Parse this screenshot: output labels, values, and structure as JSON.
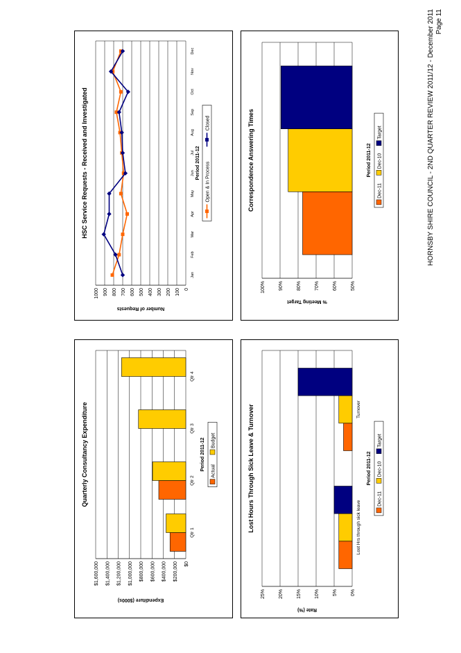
{
  "footer": {
    "line1": "HORNSBY SHIRE COUNCIL - 2ND QUARTER REVIEW 2011/12 - December 2011",
    "line2": "Page 11"
  },
  "chart_data": [
    {
      "type": "bar",
      "title": "Quarterly Consultancy Expenditure",
      "xlabel": "Period 2011-12",
      "ylabel": "Expenditure ($000s)",
      "ylim": [
        0,
        1600000
      ],
      "yticks": [
        0,
        200000,
        400000,
        600000,
        800000,
        1000000,
        1200000,
        1400000,
        1600000
      ],
      "ytick_labels": [
        "$0",
        "$200,000",
        "$400,000",
        "$600,000",
        "$800,000",
        "$1,000,000",
        "$1,200,000",
        "$1,400,000",
        "$1,600,000"
      ],
      "categories": [
        "Qtr 1",
        "Qtr 2",
        "Qtr 3",
        "Qtr 4"
      ],
      "series": [
        {
          "name": "Actual",
          "color": "#ff6600",
          "values": [
            280000,
            480000,
            null,
            null
          ]
        },
        {
          "name": "Budget",
          "color": "#ffcc00",
          "values": [
            350000,
            590000,
            840000,
            1140000
          ]
        }
      ],
      "legend": "bottom",
      "grid": true
    },
    {
      "type": "line",
      "title": "HSC Service Requests - Received and Investigated",
      "xlabel": "Period 2011-12",
      "ylabel": "Number of Requests",
      "ylim": [
        0,
        1000
      ],
      "yticks": [
        0,
        100,
        200,
        300,
        400,
        500,
        600,
        700,
        800,
        900,
        1000
      ],
      "ytick_labels": [
        "0",
        "100",
        "200",
        "300",
        "400",
        "500",
        "600",
        "700",
        "800",
        "900",
        "1000"
      ],
      "categories": [
        "Jan",
        "Feb",
        "Mar",
        "Apr",
        "May",
        "Jun",
        "Jul",
        "Aug",
        "Sep",
        "Oct",
        "Nov",
        "Dec"
      ],
      "series": [
        {
          "name": "Open & In Process",
          "color": "#ff6600",
          "marker": "square",
          "values": [
            815,
            740,
            700,
            650,
            720,
            690,
            710,
            730,
            770,
            720,
            810,
            720
          ]
        },
        {
          "name": "Closed",
          "color": "#000080",
          "marker": "diamond",
          "values": [
            700,
            780,
            910,
            850,
            850,
            670,
            700,
            710,
            740,
            640,
            830,
            700
          ]
        }
      ],
      "legend": "bottom",
      "grid": true
    },
    {
      "type": "bar",
      "title": "Lost Hours Through Sick Leave & Turnover",
      "xlabel": "Period 2011-12",
      "ylabel": "Rate (%)",
      "ylim": [
        0,
        25
      ],
      "yticks": [
        0,
        5,
        10,
        15,
        20,
        25
      ],
      "ytick_labels": [
        "0%",
        "5%",
        "10%",
        "15%",
        "20%",
        "25%"
      ],
      "categories": [
        "Lost Hrs through sick leave",
        "Turnover"
      ],
      "series": [
        {
          "name": "Dec-11",
          "color": "#ff6600",
          "values": [
            3.7,
            2.4
          ]
        },
        {
          "name": "Dec-10",
          "color": "#ffcc00",
          "values": [
            3.7,
            3.7
          ]
        },
        {
          "name": "Target",
          "color": "#000080",
          "values": [
            5.0,
            15.0
          ]
        }
      ],
      "legend": "bottom",
      "grid": true
    },
    {
      "type": "bar",
      "title": "Correspondence Answering Times",
      "xlabel": "Period 2011-12",
      "ylabel": "% Meeting Target",
      "ylim": [
        50,
        100
      ],
      "yticks": [
        50,
        60,
        70,
        80,
        90,
        100
      ],
      "ytick_labels": [
        "50%",
        "60%",
        "70%",
        "80%",
        "90%",
        "100%"
      ],
      "categories": [
        ""
      ],
      "series": [
        {
          "name": "Dec-11",
          "color": "#ff6600",
          "values": [
            77.5
          ]
        },
        {
          "name": "Dec-10",
          "color": "#ffcc00",
          "values": [
            85.5
          ]
        },
        {
          "name": "Target",
          "color": "#000080",
          "values": [
            89.5
          ]
        }
      ],
      "legend": "bottom",
      "grid": true
    }
  ]
}
